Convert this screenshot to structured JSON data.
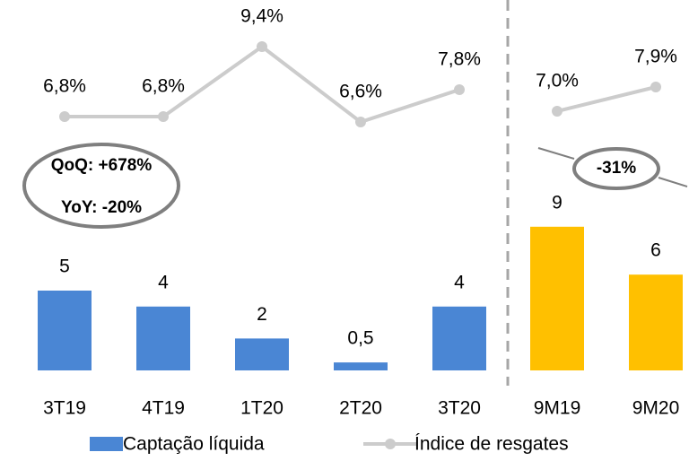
{
  "chart_data": [
    {
      "type": "bar_line",
      "categories": [
        "3T19",
        "4T19",
        "1T20",
        "2T20",
        "3T20"
      ],
      "series": [
        {
          "name": "Captação líquida",
          "type": "bar",
          "color": "#4a86d4",
          "values": [
            5,
            4,
            2,
            0.5,
            4
          ],
          "value_labels": [
            "5",
            "4",
            "2",
            "0,5",
            "4"
          ]
        },
        {
          "name": "Índice de resgates",
          "type": "line",
          "color": "#cccccc",
          "values": [
            6.8,
            6.8,
            9.4,
            6.6,
            7.8
          ],
          "value_labels": [
            "6,8%",
            "6,8%",
            "9,4%",
            "6,6%",
            "7,8%"
          ]
        }
      ],
      "annotations": [
        "QoQ: +678%",
        "YoY: -20%"
      ]
    },
    {
      "type": "bar_line",
      "categories": [
        "9M19",
        "9M20"
      ],
      "series": [
        {
          "type": "bar",
          "color": "#ffc000",
          "values": [
            9,
            6
          ],
          "value_labels": [
            "9",
            "6"
          ]
        },
        {
          "type": "line",
          "color": "#cccccc",
          "values": [
            7.0,
            7.9
          ],
          "value_labels": [
            "7,0%",
            "7,9%"
          ]
        }
      ],
      "annotations": [
        "-31%"
      ]
    }
  ]
}
